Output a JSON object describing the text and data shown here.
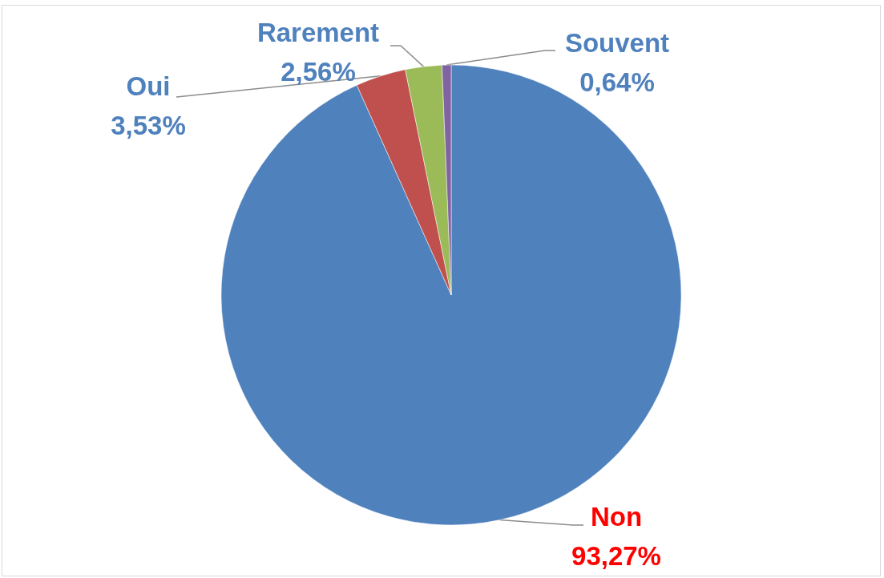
{
  "chart_data": {
    "type": "pie",
    "categories": [
      "Non",
      "Oui",
      "Rarement",
      "Souvent"
    ],
    "values": [
      93.27,
      3.53,
      2.56,
      0.64
    ],
    "colors": [
      "#4f81bd",
      "#c0504d",
      "#9bbb59",
      "#8064a2"
    ],
    "value_labels": [
      "93,27%",
      "3,53%",
      "2,56%",
      "0,64%"
    ],
    "legend": false
  }
}
